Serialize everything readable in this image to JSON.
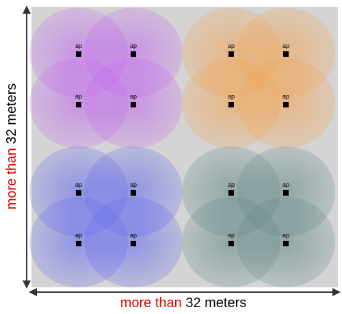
{
  "labels": {
    "vertical": {
      "prefix": "more than",
      "suffix": " 32 meters",
      "prefix_color": "#e00000"
    },
    "horizontal": {
      "prefix": "more than",
      "suffix": " 32 meters",
      "prefix_color": "#e00000"
    }
  },
  "ap_label": "ap",
  "colors": {
    "background": "#d4d4d4",
    "arrow": "#333333",
    "marker": "#000000"
  },
  "clusters": [
    {
      "name": "top-left",
      "color": "#c060f0",
      "aps": [
        "ap",
        "ap",
        "ap",
        "ap"
      ]
    },
    {
      "name": "top-right",
      "color": "#f4a048",
      "aps": [
        "ap",
        "ap",
        "ap",
        "ap"
      ]
    },
    {
      "name": "bottom-left",
      "color": "#5a60f0",
      "aps": [
        "ap",
        "ap",
        "ap",
        "ap"
      ]
    },
    {
      "name": "bottom-right",
      "color": "#5a8080",
      "aps": [
        "ap",
        "ap",
        "ap",
        "ap"
      ]
    }
  ]
}
